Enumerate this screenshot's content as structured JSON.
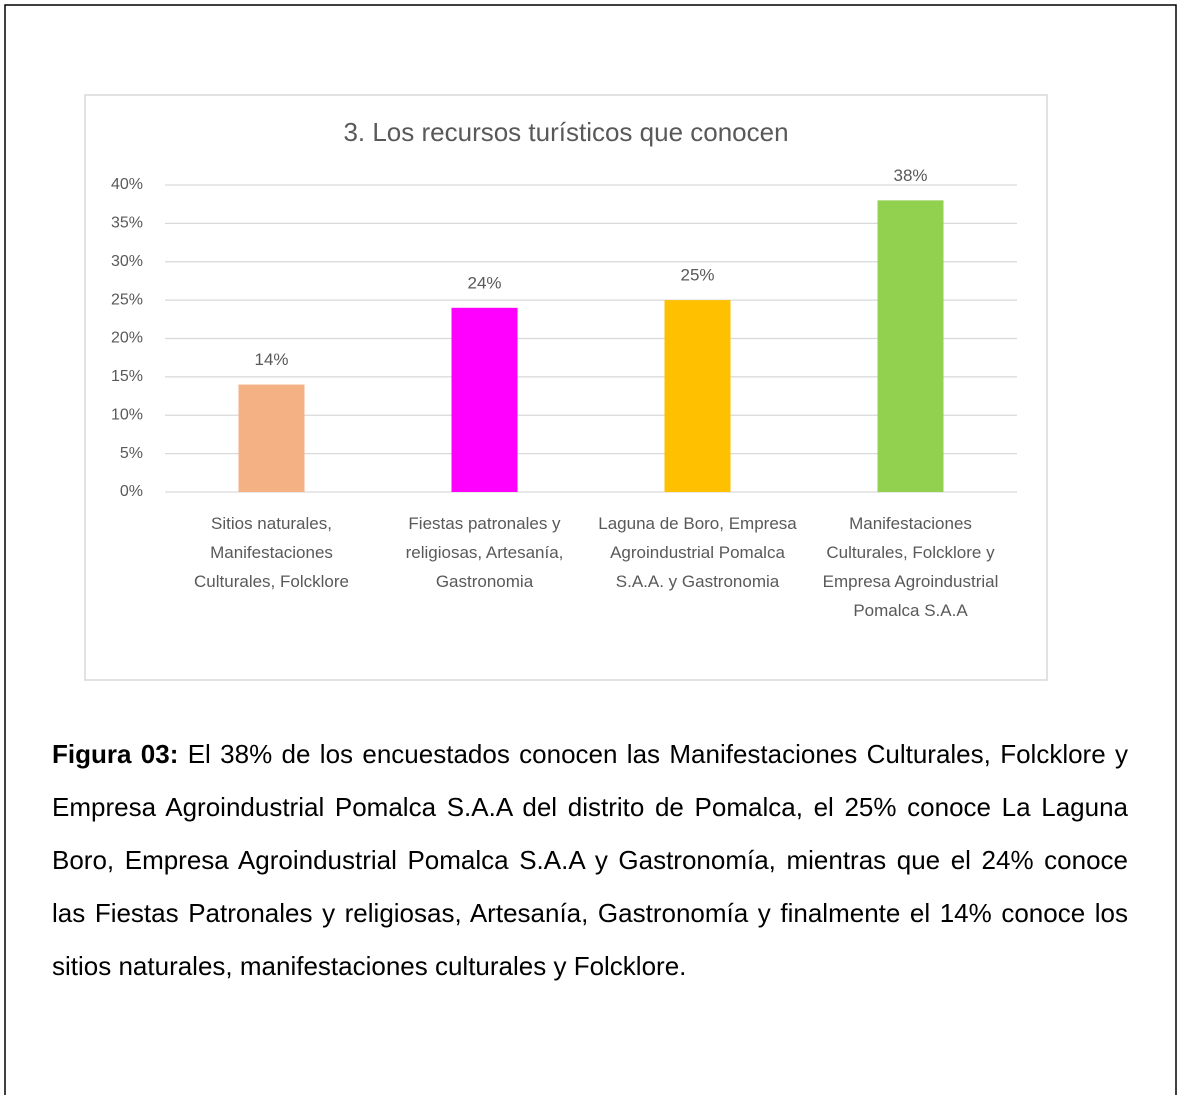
{
  "chart_data": {
    "type": "bar",
    "title": "3. Los recursos turísticos que conocen",
    "categories": [
      "Sitios naturales, Manifestaciones Culturales, Folcklore",
      "Fiestas patronales y religiosas, Artesanía, Gastronomia",
      "Laguna de Boro, Empresa Agroindustrial Pomalca S.A.A. y Gastronomia",
      "Manifestaciones Culturales, Folcklore y Empresa Agroindustrial Pomalca S.A.A"
    ],
    "values": [
      14,
      24,
      25,
      38
    ],
    "value_labels": [
      "14%",
      "24%",
      "25%",
      "38%"
    ],
    "colors": [
      "#f4b183",
      "#ff00ff",
      "#ffc000",
      "#92d050"
    ],
    "ylim": [
      0,
      40
    ],
    "yticks": [
      {
        "value": 0,
        "label": "0%"
      },
      {
        "value": 5,
        "label": "5%"
      },
      {
        "value": 10,
        "label": "10%"
      },
      {
        "value": 15,
        "label": "15%"
      },
      {
        "value": 20,
        "label": "20%"
      },
      {
        "value": 25,
        "label": "25%"
      },
      {
        "value": 30,
        "label": "30%"
      },
      {
        "value": 35,
        "label": "35%"
      },
      {
        "value": 40,
        "label": "40%"
      }
    ],
    "grid": true
  },
  "caption": {
    "label": "Figura 03:",
    "text": "El 38% de los encuestados conocen las Manifestaciones Culturales, Folcklore y Empresa Agroindustrial Pomalca S.A.A del distrito de Pomalca, el 25% conoce La Laguna Boro, Empresa Agroindustrial Pomalca S.A.A y Gastronomía, mientras que el 24% conoce las Fiestas Patronales y religiosas, Artesanía, Gastronomía y finalmente el 14% conoce los sitios naturales, manifestaciones culturales y Folcklore."
  }
}
